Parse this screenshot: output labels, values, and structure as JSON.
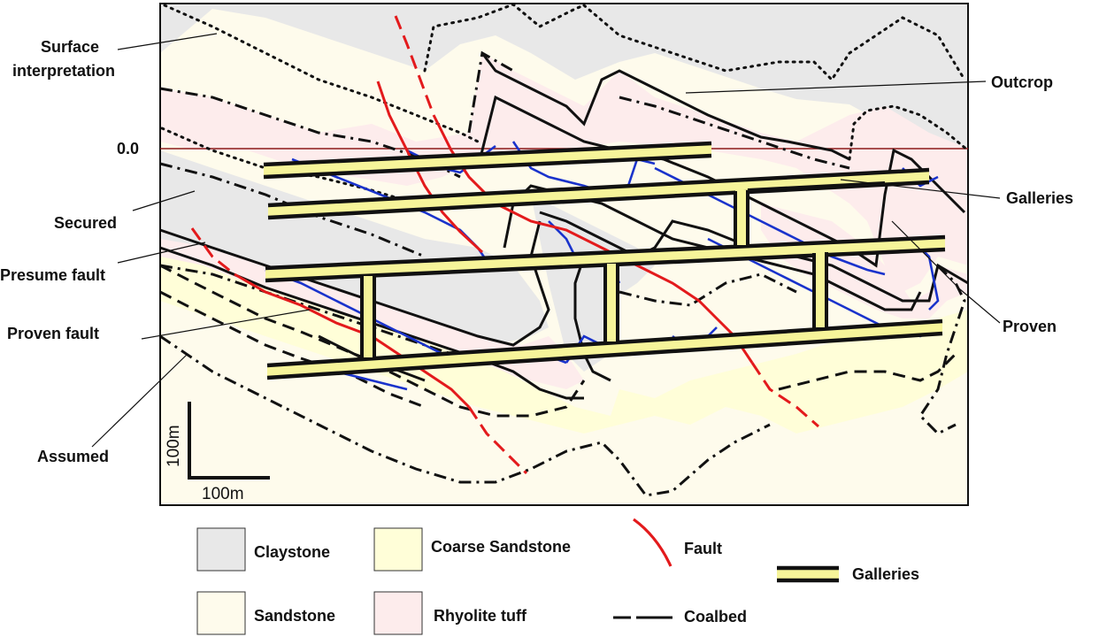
{
  "labels": {
    "surface_line1": "Surface",
    "surface_line2": "interpretation",
    "zero": "0.0",
    "secured": "Secured",
    "presume_fault": "Presume fault",
    "proven_fault": "Proven fault",
    "assumed": "Assumed",
    "outcrop": "Outcrop",
    "galleries": "Galleries",
    "proven": "Proven"
  },
  "scale": {
    "vertical": "100m",
    "horizontal": "100m"
  },
  "legend": {
    "claystone": "Claystone",
    "coarse_sandstone": "Coarse Sandstone",
    "fault": "Fault",
    "galleries": "Galleries",
    "sandstone": "Sandstone",
    "rhyolite_tuff": "Rhyolite tuff",
    "coalbed": "Coalbed"
  },
  "colors": {
    "claystone": "#e8e8e8",
    "coarse_sandstone": "#fffed8",
    "sandstone": "#fefbec",
    "rhyolite_tuff": "#fdecec",
    "fault": "#e31a1c",
    "gallery_fill": "#f6f49a",
    "coalbed": "#111111",
    "blue_line": "#1a33cc",
    "datum": "#8b1a1a"
  }
}
